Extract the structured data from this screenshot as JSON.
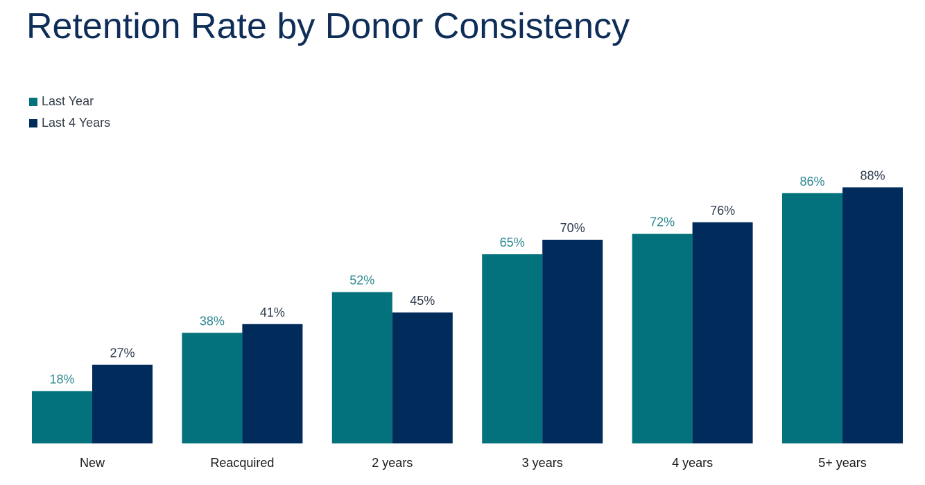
{
  "chart_data": {
    "type": "bar",
    "title": "Retention Rate by Donor Consistency",
    "categories": [
      "New",
      "Reacquired",
      "2 years",
      "3 years",
      "4 years",
      "5+ years"
    ],
    "series": [
      {
        "name": "Last Year",
        "values": [
          18,
          38,
          52,
          65,
          72,
          86
        ],
        "labels": [
          "18%",
          "38%",
          "52%",
          "65%",
          "72%",
          "86%"
        ],
        "color": "#04727c",
        "label_color": "#2c8790"
      },
      {
        "name": "Last 4 Years",
        "values": [
          27,
          41,
          45,
          70,
          76,
          88
        ],
        "labels": [
          "27%",
          "41%",
          "45%",
          "70%",
          "76%",
          "88%"
        ],
        "color": "#002b5b",
        "label_color": "#2e3b4d"
      }
    ],
    "ylim": [
      0,
      100
    ],
    "grid": false,
    "legend_position": "top-left",
    "xlabel": "",
    "ylabel": ""
  }
}
